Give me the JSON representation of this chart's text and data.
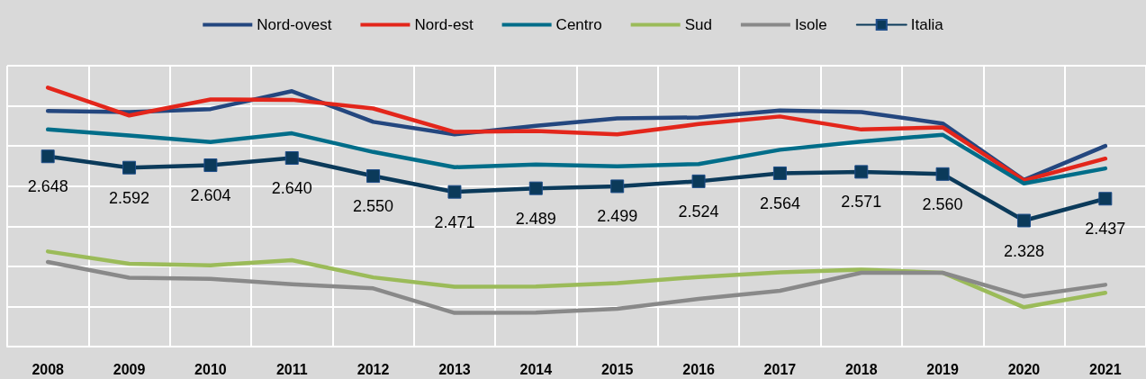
{
  "chart_data": {
    "type": "line",
    "categories": [
      "2008",
      "2009",
      "2010",
      "2011",
      "2012",
      "2013",
      "2014",
      "2015",
      "2016",
      "2017",
      "2018",
      "2019",
      "2020",
      "2021"
    ],
    "ylim": [
      1700,
      3100
    ],
    "yticks": [
      {
        "value": 1700,
        "label": null
      },
      {
        "value": 1900,
        "label": null
      },
      {
        "value": 2100,
        "label": null
      },
      {
        "value": 2300,
        "label": null
      },
      {
        "value": 2500,
        "label": null
      },
      {
        "value": 2700,
        "label": null
      },
      {
        "value": 2900,
        "label": null
      },
      {
        "value": 3100,
        "label": null
      }
    ],
    "tick_labels": "x",
    "grid": true,
    "legend": "top",
    "line_style": "solid",
    "series": [
      {
        "name": "Nord-ovest",
        "color": "#24477f",
        "marker": "none",
        "values": [
          2875,
          2869,
          2884,
          2973,
          2820,
          2758,
          2800,
          2838,
          2842,
          2877,
          2869,
          2812,
          2531,
          2700
        ]
      },
      {
        "name": "Nord-est",
        "color": "#e3261b",
        "marker": "none",
        "values": [
          2991,
          2852,
          2932,
          2930,
          2887,
          2770,
          2775,
          2758,
          2809,
          2847,
          2782,
          2793,
          2528,
          2637
        ]
      },
      {
        "name": "Centro",
        "color": "#006d89",
        "marker": "none",
        "values": [
          2782,
          2752,
          2720,
          2763,
          2670,
          2594,
          2608,
          2599,
          2610,
          2681,
          2722,
          2756,
          2513,
          2588
        ]
      },
      {
        "name": "Sud",
        "color": "#9bbb59",
        "marker": "none",
        "values": [
          2174,
          2113,
          2105,
          2131,
          2045,
          1998,
          2000,
          2016,
          2047,
          2070,
          2084,
          2068,
          1896,
          1968
        ]
      },
      {
        "name": "Isole",
        "color": "#898989",
        "marker": "none",
        "values": [
          2122,
          2043,
          2038,
          2011,
          1990,
          1868,
          1869,
          1888,
          1938,
          1978,
          2068,
          2068,
          1950,
          2008
        ]
      },
      {
        "name": "Italia",
        "color": "#0b3a5a",
        "marker": "square",
        "values": [
          2648,
          2592,
          2604,
          2640,
          2550,
          2471,
          2489,
          2499,
          2524,
          2564,
          2571,
          2560,
          2328,
          2437
        ],
        "value_labels": [
          "2.648",
          "2.592",
          "2.604",
          "2.640",
          "2.550",
          "2.471",
          "2.489",
          "2.499",
          "2.524",
          "2.564",
          "2.571",
          "2.560",
          "2.328",
          "2.437"
        ]
      }
    ]
  }
}
